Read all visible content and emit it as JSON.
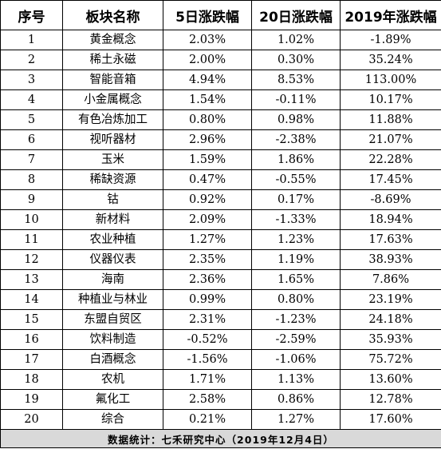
{
  "table": {
    "headers": [
      "序号",
      "板块名称",
      "5日涨跌幅",
      "20日涨跌幅",
      "2019年涨跌幅"
    ],
    "rows": [
      [
        "1",
        "黄金概念",
        "2.03%",
        "1.02%",
        "-1.89%"
      ],
      [
        "2",
        "稀土永磁",
        "2.00%",
        "0.30%",
        "35.24%"
      ],
      [
        "3",
        "智能音箱",
        "4.94%",
        "8.53%",
        "113.00%"
      ],
      [
        "4",
        "小金属概念",
        "1.54%",
        "-0.11%",
        "10.17%"
      ],
      [
        "5",
        "有色冶炼加工",
        "0.80%",
        "0.98%",
        "11.88%"
      ],
      [
        "6",
        "视听器材",
        "2.96%",
        "-2.38%",
        "21.07%"
      ],
      [
        "7",
        "玉米",
        "1.59%",
        "1.86%",
        "22.28%"
      ],
      [
        "8",
        "稀缺资源",
        "0.47%",
        "-0.55%",
        "17.45%"
      ],
      [
        "9",
        "钴",
        "0.92%",
        "0.17%",
        "-8.69%"
      ],
      [
        "10",
        "新材料",
        "2.09%",
        "-1.33%",
        "18.94%"
      ],
      [
        "11",
        "农业种植",
        "1.27%",
        "1.23%",
        "17.63%"
      ],
      [
        "12",
        "仪器仪表",
        "2.35%",
        "1.19%",
        "38.93%"
      ],
      [
        "13",
        "海南",
        "2.36%",
        "1.65%",
        "7.86%"
      ],
      [
        "14",
        "种植业与林业",
        "0.99%",
        "0.80%",
        "23.19%"
      ],
      [
        "15",
        "东盟自贸区",
        "2.31%",
        "-1.23%",
        "24.18%"
      ],
      [
        "16",
        "饮料制造",
        "-0.52%",
        "-2.59%",
        "35.93%"
      ],
      [
        "17",
        "白酒概念",
        "-1.56%",
        "-1.06%",
        "75.72%"
      ],
      [
        "18",
        "农机",
        "1.71%",
        "1.13%",
        "13.60%"
      ],
      [
        "19",
        "氟化工",
        "2.58%",
        "0.86%",
        "12.78%"
      ],
      [
        "20",
        "综合",
        "0.21%",
        "1.27%",
        "17.60%"
      ]
    ],
    "footer": "数据统计：七禾研究中心（2019年12月4日）"
  }
}
